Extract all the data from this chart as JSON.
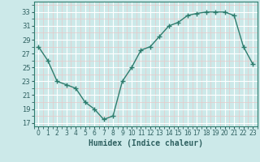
{
  "x": [
    0,
    1,
    2,
    3,
    4,
    5,
    6,
    7,
    8,
    9,
    10,
    11,
    12,
    13,
    14,
    15,
    16,
    17,
    18,
    19,
    20,
    21,
    22,
    23
  ],
  "y": [
    28,
    26,
    23,
    22.5,
    22,
    20,
    19,
    17.5,
    18,
    23,
    25,
    27.5,
    28,
    29.5,
    31,
    31.5,
    32.5,
    32.8,
    33,
    33,
    33,
    32.5,
    28,
    25.5
  ],
  "xlabel": "Humidex (Indice chaleur)",
  "ylabel": "",
  "xlim": [
    -0.5,
    23.5
  ],
  "ylim": [
    16.5,
    34.5
  ],
  "yticks": [
    17,
    19,
    21,
    23,
    25,
    27,
    29,
    31,
    33
  ],
  "xticks": [
    0,
    1,
    2,
    3,
    4,
    5,
    6,
    7,
    8,
    9,
    10,
    11,
    12,
    13,
    14,
    15,
    16,
    17,
    18,
    19,
    20,
    21,
    22,
    23
  ],
  "line_color": "#2e7d6e",
  "marker": "+",
  "bg_color": "#cce9e9",
  "grid_color": "#e8c8c8",
  "grid_major_color": "#ffffff"
}
